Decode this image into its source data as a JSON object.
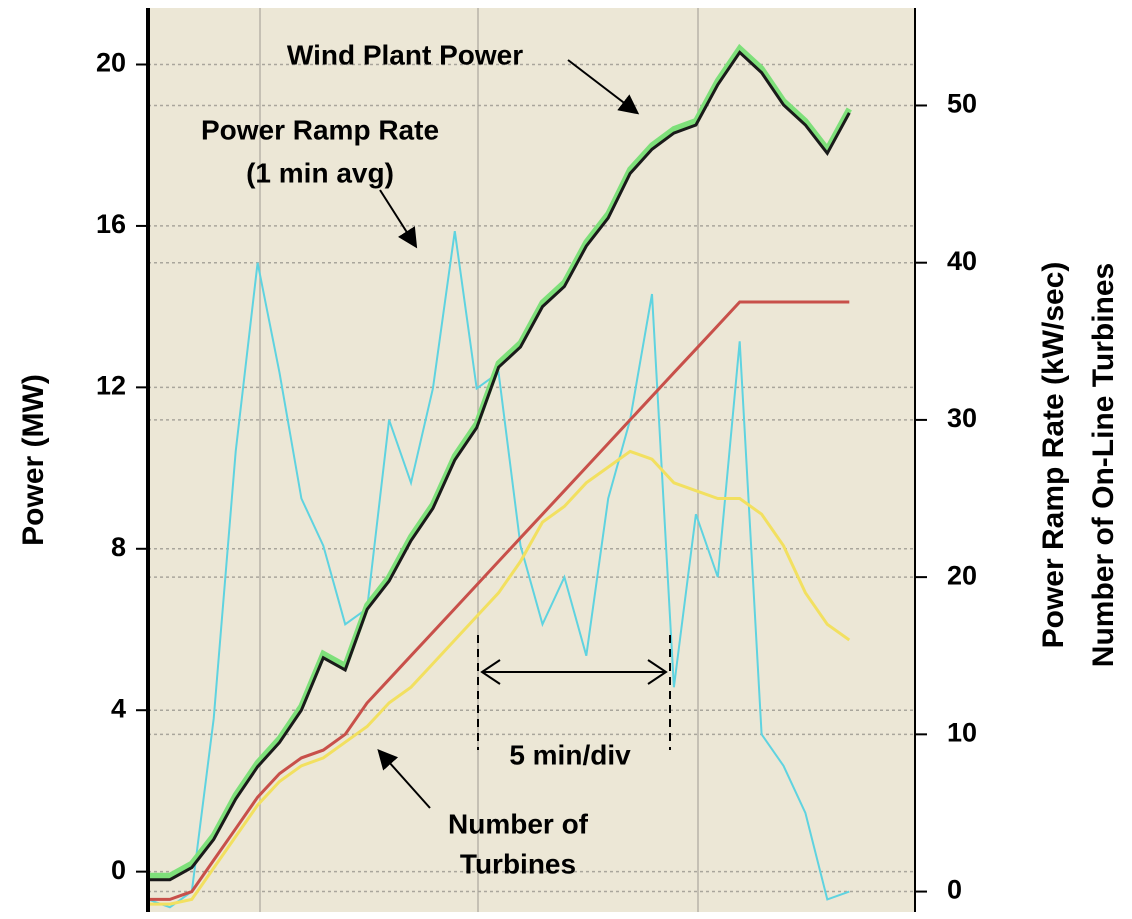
{
  "chart_data": {
    "type": "line",
    "annotations": [
      "Wind Plant Power",
      "Power Ramp Rate",
      "(1 min avg)",
      "5 min/div",
      "Number of",
      "Turbines"
    ],
    "ylabel": "Power (MW)",
    "y2labels": [
      "Power Ramp Rate (kW/sec)",
      "Number of On-Line Turbines"
    ],
    "xlim": [
      0,
      17.5
    ],
    "x": [
      0,
      0.5,
      1,
      1.5,
      2,
      2.5,
      3,
      3.5,
      4,
      4.5,
      5,
      5.5,
      6,
      6.5,
      7,
      7.5,
      8,
      8.5,
      9,
      9.5,
      10,
      10.5,
      11,
      11.5,
      12,
      12.5,
      13,
      13.5,
      14,
      14.5,
      15,
      15.5,
      16
    ],
    "ylim": [
      -1,
      21.4
    ],
    "yticks": [
      0,
      4,
      8,
      12,
      16,
      20
    ],
    "y2lim": [
      -1.3,
      56.2
    ],
    "y2ticks": [
      0,
      10,
      20,
      30,
      40,
      50
    ],
    "grid": true,
    "series": [
      {
        "name": "Power Ramp Rate",
        "color": "#5fd3e0",
        "axis": "y2",
        "values": [
          -0.5,
          -1,
          0,
          11,
          28,
          40,
          33,
          25,
          22,
          17,
          18,
          30,
          26,
          32,
          42,
          32,
          33,
          22,
          17,
          20,
          15,
          25,
          30,
          38,
          13,
          24,
          20,
          35,
          10,
          8,
          5,
          -0.5,
          0
        ]
      },
      {
        "color": "#f2e060",
        "axis": "y2",
        "values": [
          -0.8,
          -0.8,
          -0.5,
          1.5,
          3.5,
          5.5,
          7,
          8,
          8.5,
          9.5,
          10.5,
          12,
          13,
          14.5,
          16,
          17.5,
          19,
          21,
          23.5,
          24.5,
          26,
          27,
          28,
          27.5,
          26,
          25.5,
          25,
          25,
          24,
          22,
          19,
          17,
          16
        ]
      },
      {
        "name": "Number of Turbines",
        "color": "#c8504a",
        "axis": "y2",
        "values": [
          -0.5,
          -0.5,
          0,
          2,
          4,
          6,
          7.5,
          8.5,
          9,
          10,
          12,
          13.5,
          15,
          16.5,
          18,
          19.5,
          21,
          22.5,
          24,
          25.5,
          27,
          28.5,
          30,
          31.5,
          33,
          34.5,
          36,
          37.5,
          37.5,
          37.5,
          37.5,
          37.5,
          37.5
        ]
      },
      {
        "name": "Wind Plant Power",
        "color": "#1a1a1a",
        "values": [
          -0.2,
          -0.2,
          0.1,
          0.8,
          1.8,
          2.6,
          3.2,
          4.0,
          5.3,
          5.0,
          6.5,
          7.2,
          8.2,
          9.0,
          10.2,
          11.0,
          12.5,
          13.0,
          14.0,
          14.5,
          15.5,
          16.2,
          17.3,
          17.9,
          18.3,
          18.5,
          19.5,
          20.3,
          19.8,
          19.0,
          18.5,
          17.8,
          18.8
        ]
      }
    ]
  }
}
